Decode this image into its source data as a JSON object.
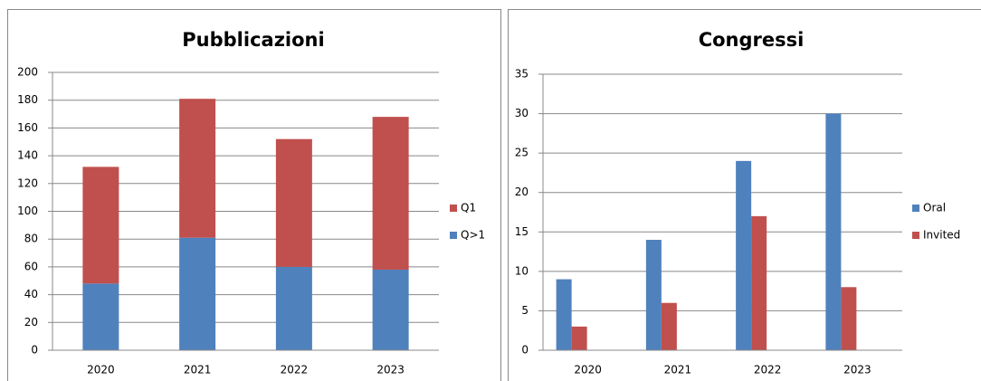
{
  "chart_data": [
    {
      "type": "bar",
      "stacked": true,
      "title": "Pubblicazioni",
      "categories": [
        "2020",
        "2021",
        "2022",
        "2023"
      ],
      "series": [
        {
          "name": "Q>1",
          "color": "#4f81bd",
          "values": [
            48,
            81,
            60,
            58
          ]
        },
        {
          "name": "Q1",
          "color": "#c0504d",
          "values": [
            84,
            100,
            92,
            110
          ]
        }
      ],
      "ylim": [
        0,
        200
      ],
      "yticks": [
        0,
        20,
        40,
        60,
        80,
        100,
        120,
        140,
        160,
        180,
        200
      ],
      "grid": true,
      "legend": "right"
    },
    {
      "type": "bar",
      "stacked": false,
      "title": "Congressi",
      "categories": [
        "2020",
        "2021",
        "2022",
        "2023"
      ],
      "series": [
        {
          "name": "Oral",
          "color": "#4f81bd",
          "values": [
            9,
            14,
            24,
            30
          ]
        },
        {
          "name": "Invited",
          "color": "#c0504d",
          "values": [
            3,
            6,
            17,
            8
          ]
        }
      ],
      "ylim": [
        0,
        35
      ],
      "yticks": [
        0,
        5,
        10,
        15,
        20,
        25,
        30,
        35
      ],
      "grid": true,
      "legend": "right"
    }
  ]
}
